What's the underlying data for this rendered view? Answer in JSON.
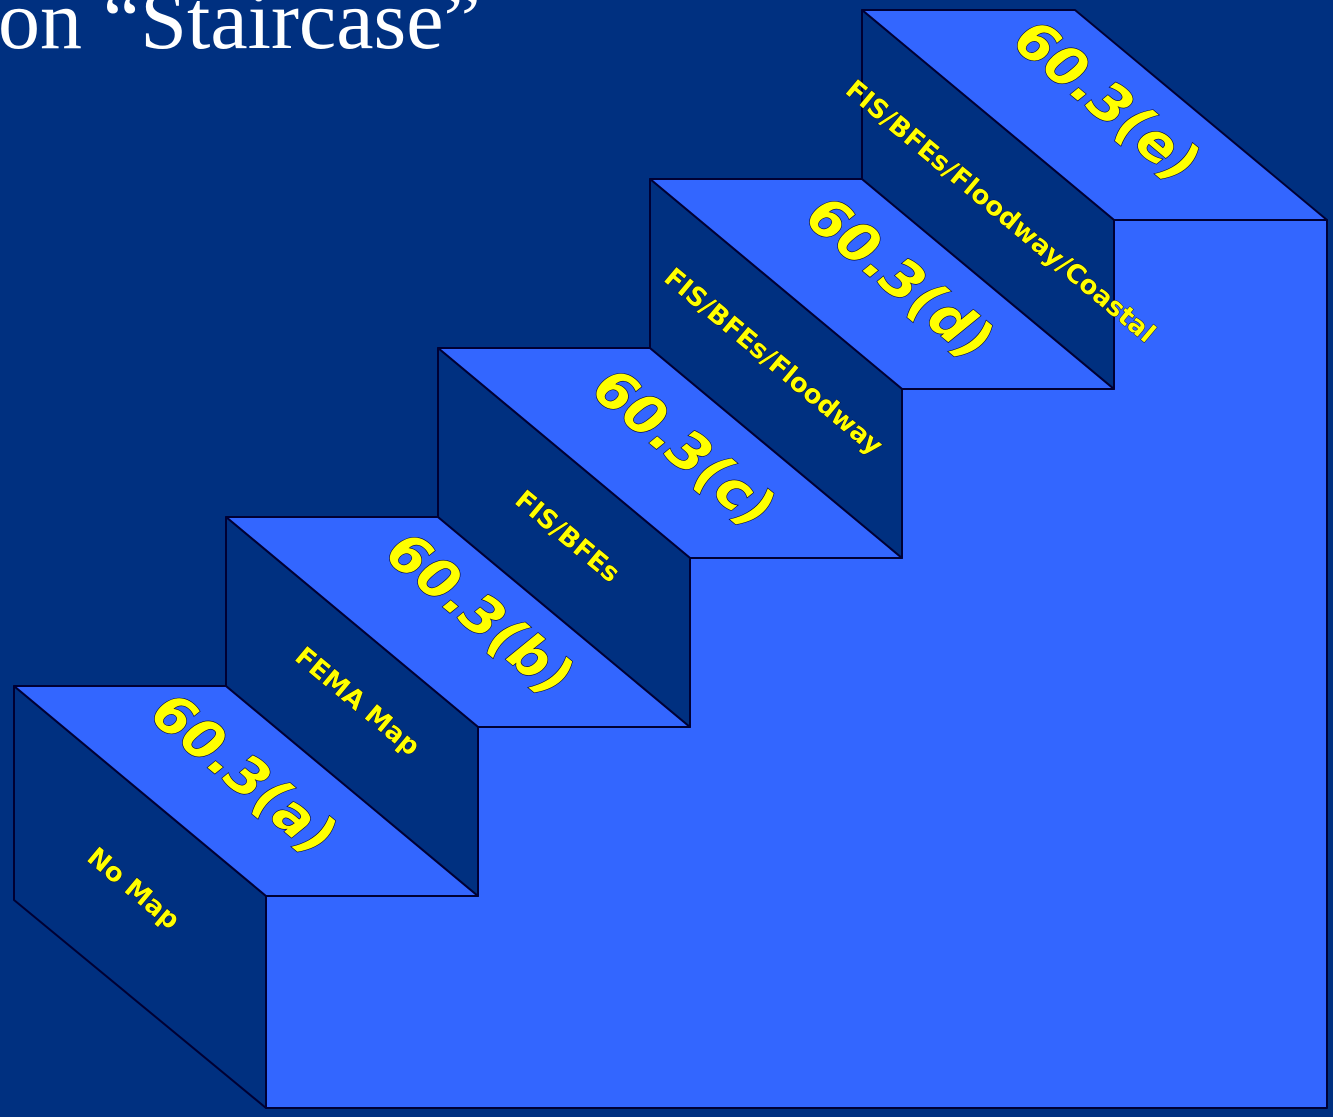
{
  "slide": {
    "title_fragment": "on “Staircase”",
    "colors": {
      "background": "#003080",
      "tread": "#3366ff",
      "riser": "#003080",
      "edge": "#000033",
      "label": "#ffff00",
      "title": "#ffffff"
    }
  },
  "steps": [
    {
      "code": "60.3(a)",
      "description": "No Map"
    },
    {
      "code": "60.3(b)",
      "description": "FEMA Map"
    },
    {
      "code": "60.3(c)",
      "description": "FIS/BFEs"
    },
    {
      "code": "60.3(d)",
      "description": "FIS/BFEs/Floodway"
    },
    {
      "code": "60.3(e)",
      "description": "FIS/BFEs/Floodway/Coastal"
    }
  ]
}
